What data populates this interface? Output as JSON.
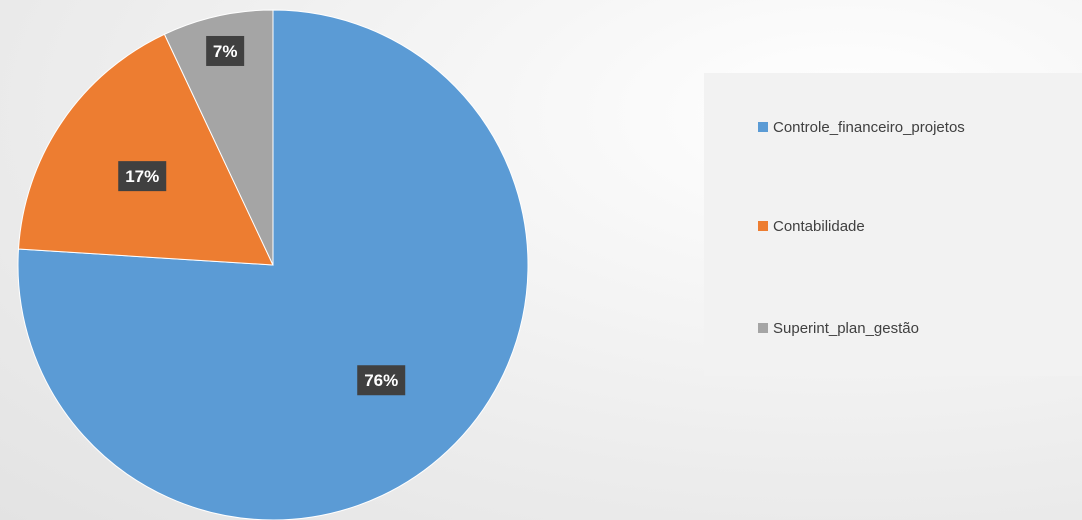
{
  "chart_data": {
    "type": "pie",
    "title": "",
    "categories": [
      "Controle_financeiro_projetos",
      "Contabilidade",
      "Superint_plan_gestão"
    ],
    "values": [
      76,
      17,
      7
    ],
    "data_labels": [
      "76%",
      "17%",
      "7%"
    ],
    "colors": [
      "#5b9bd5",
      "#ed7d31",
      "#a5a5a5"
    ],
    "start_angle": "12 o'clock",
    "direction": "clockwise",
    "legend": {
      "placement": "right",
      "entries": [
        "Controle_financeiro_projetos",
        "Contabilidade",
        "Superint_plan_gestão"
      ]
    }
  }
}
